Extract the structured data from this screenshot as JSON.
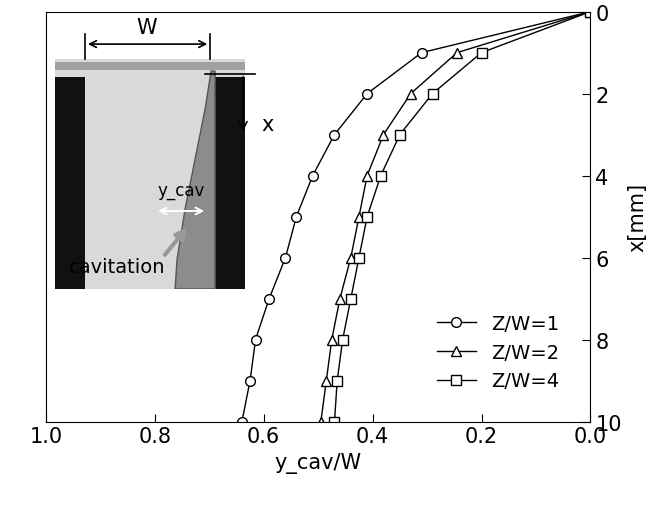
{
  "chart_data": {
    "type": "line",
    "x_label": "y_cav/W",
    "y_label": "x[mm]",
    "y": [
      0,
      1,
      2,
      3,
      4,
      5,
      6,
      7,
      8,
      9,
      10
    ],
    "series": [
      {
        "name": "Z/W=1",
        "color": "#000000",
        "marker": "circle",
        "line_style": "solid",
        "x": [
          0.0,
          0.31,
          0.41,
          0.47,
          0.51,
          0.54,
          0.56,
          0.59,
          0.615,
          0.625,
          0.64
        ]
      },
      {
        "name": "Z/W=2",
        "color": "#000000",
        "marker": "triangle",
        "line_style": "solid",
        "x": [
          0.0,
          0.245,
          0.33,
          0.38,
          0.41,
          0.425,
          0.44,
          0.46,
          0.475,
          0.485,
          0.495
        ]
      },
      {
        "name": "Z/W=4",
        "color": "#000000",
        "marker": "square",
        "line_style": "solid",
        "x": [
          0.0,
          0.2,
          0.29,
          0.35,
          0.385,
          0.41,
          0.425,
          0.44,
          0.455,
          0.465,
          0.47
        ]
      }
    ],
    "xlim": [
      1.0,
      0.0
    ],
    "xticks": [
      1.0,
      0.8,
      0.6,
      0.4,
      0.2,
      0.0
    ],
    "ylim": [
      10,
      0
    ],
    "yticks": [
      0,
      2,
      4,
      6,
      8,
      10
    ],
    "legend": "lower right",
    "grid": false,
    "annotations": [
      "W",
      "x",
      "y_cav",
      "cavitation"
    ]
  }
}
